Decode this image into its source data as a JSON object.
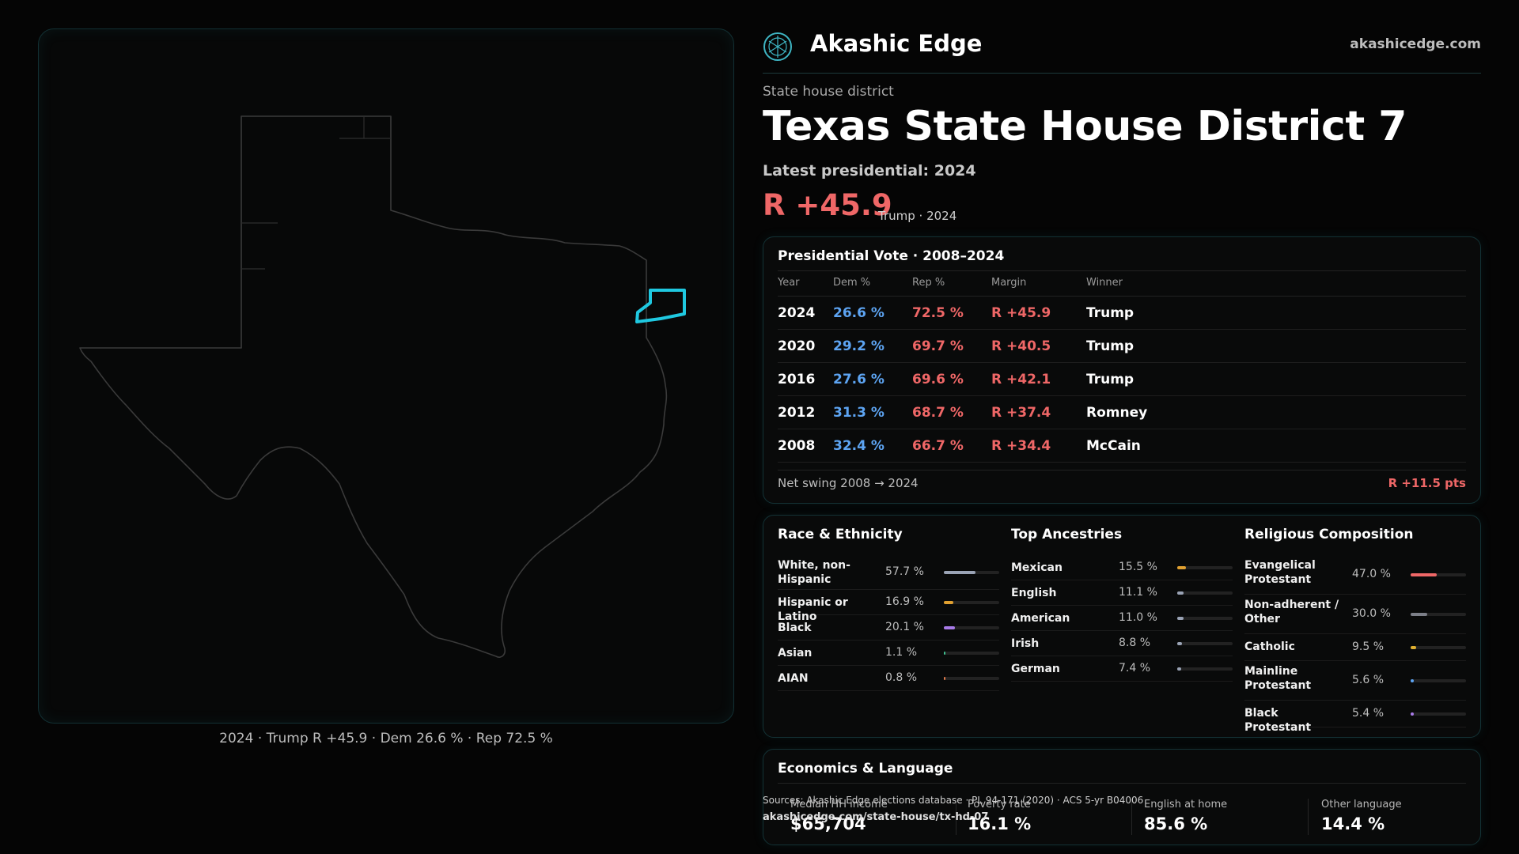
{
  "brand": {
    "name": "Akashic Edge",
    "url": "akashicedge.com",
    "logo_icon": "akashic-emblem-icon"
  },
  "header": {
    "kicker": "State house district",
    "title": "Texas  State House District 7",
    "latest_label": "Latest presidential: 2024",
    "margin": "R +45.9",
    "margin_sub": "Trump · 2024"
  },
  "map": {
    "caption": "2024 · Trump R +45.9 · Dem 26.6 % · Rep 72.5 %",
    "highlight_color": "#1fc8e0"
  },
  "vote_table": {
    "title": "Presidential Vote · 2008–2024",
    "columns": [
      "Year",
      "Dem %",
      "Rep %",
      "Margin",
      "Winner"
    ],
    "rows": [
      {
        "year": "2024",
        "dem": "26.6 %",
        "rep": "72.5 %",
        "margin": "R +45.9",
        "winner": "Trump"
      },
      {
        "year": "2020",
        "dem": "29.2 %",
        "rep": "69.7 %",
        "margin": "R +40.5",
        "winner": "Trump"
      },
      {
        "year": "2016",
        "dem": "27.6 %",
        "rep": "69.6 %",
        "margin": "R +42.1",
        "winner": "Trump"
      },
      {
        "year": "2012",
        "dem": "31.3 %",
        "rep": "68.7 %",
        "margin": "R +37.4",
        "winner": "Romney"
      },
      {
        "year": "2008",
        "dem": "32.4 %",
        "rep": "66.7 %",
        "margin": "R +34.4",
        "winner": "McCain"
      }
    ],
    "footer_label": "Net swing 2008 → 2024",
    "footer_value": "R +11.5 pts"
  },
  "demographics": [
    {
      "title": "Race & Ethnicity",
      "items": [
        {
          "label": "White, non-Hispanic",
          "value": "57.7 %",
          "fraction": 0.577,
          "color": "#9aa3b5"
        },
        {
          "label": "Hispanic or Latino",
          "value": "16.9 %",
          "fraction": 0.169,
          "color": "#e0a030"
        },
        {
          "label": "Black",
          "value": "20.1 %",
          "fraction": 0.201,
          "color": "#a87be8"
        },
        {
          "label": "Asian",
          "value": "1.1 %",
          "fraction": 0.011,
          "color": "#3fbf8f"
        },
        {
          "label": "AIAN",
          "value": "0.8 %",
          "fraction": 0.008,
          "color": "#e07a4a"
        }
      ]
    },
    {
      "title": "Top Ancestries",
      "items": [
        {
          "label": "Mexican",
          "value": "15.5 %",
          "fraction": 0.155,
          "color": "#e0a030"
        },
        {
          "label": "English",
          "value": "11.1 %",
          "fraction": 0.111,
          "color": "#9aa3b5"
        },
        {
          "label": "American",
          "value": "11.0 %",
          "fraction": 0.11,
          "color": "#9aa3b5"
        },
        {
          "label": "Irish",
          "value": "8.8 %",
          "fraction": 0.088,
          "color": "#9aa3b5"
        },
        {
          "label": "German",
          "value": "7.4 %",
          "fraction": 0.074,
          "color": "#9aa3b5"
        }
      ]
    },
    {
      "title": "Religious Composition",
      "items": [
        {
          "label": "Evangelical Protestant",
          "value": "47.0 %",
          "fraction": 0.47,
          "color": "#ef6767"
        },
        {
          "label": "Non-adherent / Other",
          "value": "30.0 %",
          "fraction": 0.3,
          "color": "#7c7f88"
        },
        {
          "label": "Catholic",
          "value": "9.5 %",
          "fraction": 0.095,
          "color": "#e0b030"
        },
        {
          "label": "Mainline Protestant",
          "value": "5.6 %",
          "fraction": 0.056,
          "color": "#5da4f2"
        },
        {
          "label": "Black Protestant",
          "value": "5.4 %",
          "fraction": 0.054,
          "color": "#a87be8"
        }
      ]
    }
  ],
  "economics": {
    "title": "Economics & Language",
    "items": [
      {
        "label": "Median HH income",
        "value": "$65,704"
      },
      {
        "label": "Poverty rate",
        "value": "16.1 %"
      },
      {
        "label": "English at home",
        "value": "85.6 %"
      },
      {
        "label": "Other language",
        "value": "14.4 %"
      }
    ]
  },
  "sources": {
    "line": "Sources: Akashic Edge elections database · PL 94-171 (2020) · ACS 5-yr B04006",
    "url": "akashicedge.com/state-house/tx-hd-07"
  }
}
